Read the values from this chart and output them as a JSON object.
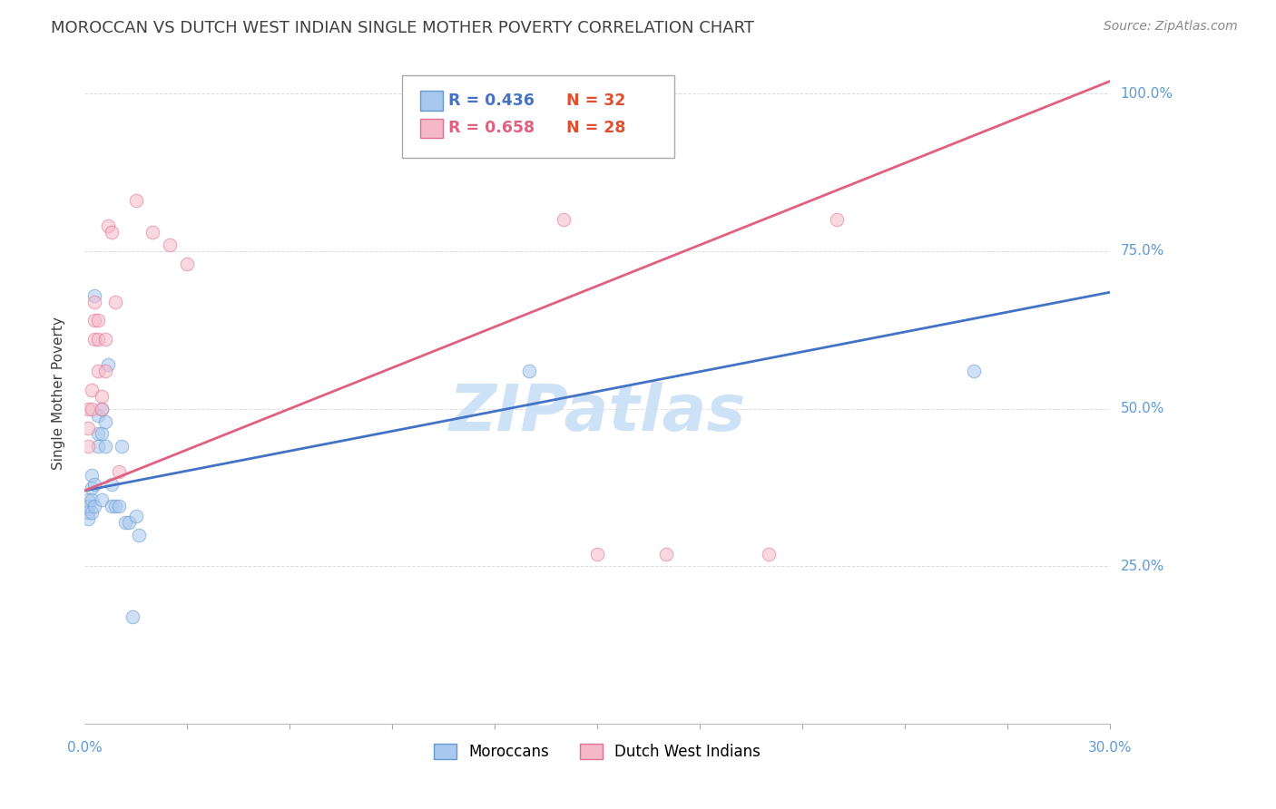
{
  "title": "MOROCCAN VS DUTCH WEST INDIAN SINGLE MOTHER POVERTY CORRELATION CHART",
  "source": "Source: ZipAtlas.com",
  "ylabel": "Single Mother Poverty",
  "xlim": [
    0.0,
    0.3
  ],
  "ylim": [
    0.0,
    1.05
  ],
  "moroccan_points": [
    [
      0.001,
      0.355
    ],
    [
      0.001,
      0.345
    ],
    [
      0.001,
      0.335
    ],
    [
      0.001,
      0.325
    ],
    [
      0.002,
      0.395
    ],
    [
      0.002,
      0.375
    ],
    [
      0.002,
      0.355
    ],
    [
      0.002,
      0.335
    ],
    [
      0.003,
      0.68
    ],
    [
      0.003,
      0.38
    ],
    [
      0.003,
      0.345
    ],
    [
      0.004,
      0.49
    ],
    [
      0.004,
      0.46
    ],
    [
      0.004,
      0.44
    ],
    [
      0.005,
      0.5
    ],
    [
      0.005,
      0.46
    ],
    [
      0.005,
      0.355
    ],
    [
      0.006,
      0.48
    ],
    [
      0.006,
      0.44
    ],
    [
      0.007,
      0.57
    ],
    [
      0.008,
      0.38
    ],
    [
      0.008,
      0.345
    ],
    [
      0.009,
      0.345
    ],
    [
      0.01,
      0.345
    ],
    [
      0.011,
      0.44
    ],
    [
      0.012,
      0.32
    ],
    [
      0.013,
      0.32
    ],
    [
      0.014,
      0.17
    ],
    [
      0.015,
      0.33
    ],
    [
      0.016,
      0.3
    ],
    [
      0.13,
      0.56
    ],
    [
      0.26,
      0.56
    ]
  ],
  "dutch_points": [
    [
      0.001,
      0.5
    ],
    [
      0.001,
      0.47
    ],
    [
      0.001,
      0.44
    ],
    [
      0.002,
      0.53
    ],
    [
      0.002,
      0.5
    ],
    [
      0.003,
      0.67
    ],
    [
      0.003,
      0.64
    ],
    [
      0.003,
      0.61
    ],
    [
      0.004,
      0.64
    ],
    [
      0.004,
      0.61
    ],
    [
      0.004,
      0.56
    ],
    [
      0.005,
      0.52
    ],
    [
      0.005,
      0.5
    ],
    [
      0.006,
      0.61
    ],
    [
      0.006,
      0.56
    ],
    [
      0.007,
      0.79
    ],
    [
      0.008,
      0.78
    ],
    [
      0.009,
      0.67
    ],
    [
      0.01,
      0.4
    ],
    [
      0.015,
      0.83
    ],
    [
      0.02,
      0.78
    ],
    [
      0.025,
      0.76
    ],
    [
      0.03,
      0.73
    ],
    [
      0.15,
      0.27
    ],
    [
      0.2,
      0.27
    ],
    [
      0.17,
      0.27
    ],
    [
      0.14,
      0.8
    ],
    [
      0.22,
      0.8
    ]
  ],
  "moroccan_color": "#a8c8f0",
  "moroccan_edge": "#6699cc",
  "dutch_color": "#f5b8c8",
  "dutch_edge": "#e07090",
  "blue_line_color": "#4472c4",
  "pink_line_color": "#e06080",
  "watermark": "ZIPatlas",
  "watermark_color": "#c8dff5",
  "background": "#ffffff",
  "grid_color": "#dddddd",
  "axis_label_color": "#5b9bd5",
  "title_color": "#404040",
  "marker_size": 110,
  "marker_alpha": 0.55,
  "blue_line_x0": 0.0,
  "blue_line_y0": 0.37,
  "blue_line_x1": 0.3,
  "blue_line_y1": 0.685,
  "pink_line_x0": 0.0,
  "pink_line_y0": 0.37,
  "pink_line_x1": 0.3,
  "pink_line_y1": 1.02
}
